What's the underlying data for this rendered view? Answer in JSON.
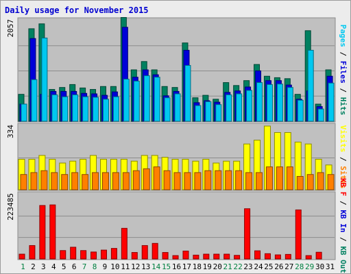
{
  "colors": {
    "background": "#ececec",
    "panel": "#c0c0c0",
    "title": "#0000d0",
    "pages": "#00c8f0",
    "files": "#0000d8",
    "hits": "#008060",
    "visits": "#ffff00",
    "sites": "#ff8000",
    "kb": "#ff0000",
    "weekend_label": "#008040",
    "weekday_label": "#000000"
  },
  "chart_data": [
    {
      "type": "bar",
      "title": "Daily usage for November 2015",
      "ymax_label": "2057",
      "legend": [
        "Pages",
        "Files",
        "Hits"
      ],
      "categories": [
        "1",
        "2",
        "3",
        "4",
        "5",
        "6",
        "7",
        "8",
        "9",
        "10",
        "11",
        "12",
        "13",
        "14",
        "15",
        "16",
        "17",
        "18",
        "19",
        "20",
        "21",
        "22",
        "23",
        "24",
        "25",
        "26",
        "27",
        "28",
        "29",
        "30",
        "31"
      ],
      "series": [
        {
          "name": "Hits",
          "values": [
            550,
            1890,
            1990,
            650,
            690,
            750,
            680,
            650,
            710,
            710,
            2120,
            1050,
            1220,
            1050,
            710,
            690,
            1600,
            480,
            530,
            450,
            790,
            730,
            830,
            1160,
            920,
            890,
            870,
            550,
            1850,
            350,
            1050
          ]
        },
        {
          "name": "Files",
          "values": [
            350,
            1690,
            550,
            610,
            610,
            610,
            570,
            560,
            530,
            600,
            1920,
            900,
            1050,
            950,
            520,
            610,
            1450,
            380,
            420,
            390,
            590,
            620,
            700,
            1030,
            830,
            830,
            740,
            450,
            620,
            300,
            920
          ]
        },
        {
          "name": "Pages",
          "values": [
            350,
            850,
            1700,
            540,
            500,
            540,
            500,
            490,
            450,
            500,
            860,
            820,
            930,
            900,
            480,
            560,
            1140,
            320,
            400,
            340,
            540,
            560,
            630,
            790,
            750,
            760,
            690,
            430,
            1450,
            250,
            780
          ]
        }
      ]
    },
    {
      "type": "bar",
      "ymax_label": "334",
      "legend": [
        "Visits",
        "Sites"
      ],
      "categories": [
        "1",
        "2",
        "3",
        "4",
        "5",
        "6",
        "7",
        "8",
        "9",
        "10",
        "11",
        "12",
        "13",
        "14",
        "15",
        "16",
        "17",
        "18",
        "19",
        "20",
        "21",
        "22",
        "23",
        "24",
        "25",
        "26",
        "27",
        "28",
        "29",
        "30",
        "31"
      ],
      "series": [
        {
          "name": "Visits",
          "values": [
            160,
            160,
            180,
            160,
            140,
            150,
            160,
            180,
            160,
            160,
            160,
            150,
            180,
            180,
            170,
            160,
            160,
            150,
            160,
            140,
            150,
            150,
            240,
            260,
            334,
            300,
            300,
            250,
            240,
            160,
            130
          ]
        },
        {
          "name": "Sites",
          "values": [
            80,
            90,
            100,
            90,
            80,
            90,
            80,
            90,
            90,
            90,
            90,
            100,
            110,
            120,
            100,
            90,
            90,
            90,
            100,
            100,
            100,
            100,
            90,
            90,
            120,
            120,
            120,
            70,
            80,
            90,
            80
          ]
        }
      ]
    },
    {
      "type": "bar",
      "ymax_label": "223485",
      "legend": [
        "KB F",
        "KB In",
        "KB Out"
      ],
      "categories": [
        "1",
        "2",
        "3",
        "4",
        "5",
        "6",
        "7",
        "8",
        "9",
        "10",
        "11",
        "12",
        "13",
        "14",
        "15",
        "16",
        "17",
        "18",
        "19",
        "20",
        "21",
        "22",
        "23",
        "24",
        "25",
        "26",
        "27",
        "28",
        "29",
        "30",
        "31"
      ],
      "series": [
        {
          "name": "KB F",
          "values": [
            20000,
            56000,
            223485,
            226000,
            35000,
            49000,
            35000,
            29000,
            37000,
            44000,
            128000,
            27000,
            56000,
            65000,
            27000,
            14000,
            33000,
            16000,
            20000,
            20000,
            20000,
            15000,
            210000,
            34000,
            22000,
            17000,
            19000,
            205000,
            14000,
            28000,
            0
          ]
        }
      ]
    }
  ]
}
